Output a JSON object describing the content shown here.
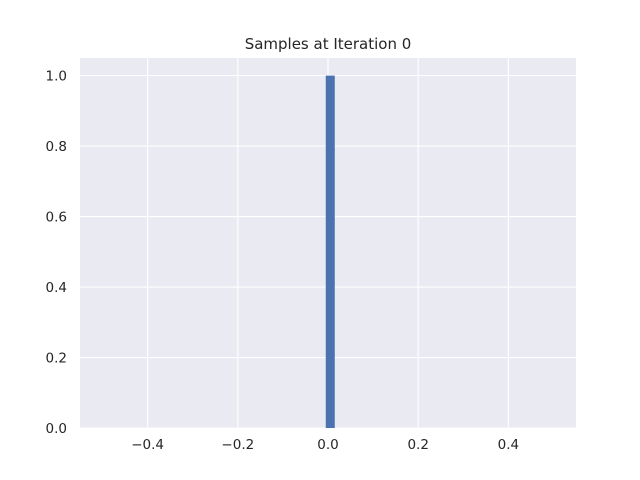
{
  "chart_data": {
    "type": "bar",
    "title": "Samples at Iteration 0",
    "xlabel": "",
    "ylabel": "",
    "xlim": [
      -0.55,
      0.55
    ],
    "ylim": [
      0,
      1.05
    ],
    "xticks": [
      -0.4,
      -0.2,
      0.0,
      0.2,
      0.4
    ],
    "xtick_labels": [
      "−0.4",
      "−0.2",
      "0.0",
      "0.2",
      "0.4"
    ],
    "yticks": [
      0.0,
      0.2,
      0.4,
      0.6,
      0.8,
      1.0
    ],
    "ytick_labels": [
      "0.0",
      "0.2",
      "0.4",
      "0.6",
      "0.8",
      "1.0"
    ],
    "grid": true,
    "bars": [
      {
        "x_start": -0.005,
        "x_end": 0.015,
        "value": 1.0
      }
    ],
    "colors": {
      "bar": "#4c72b0",
      "axes_bg": "#eaeaf2",
      "grid": "#ffffff",
      "text": "#262626"
    }
  }
}
